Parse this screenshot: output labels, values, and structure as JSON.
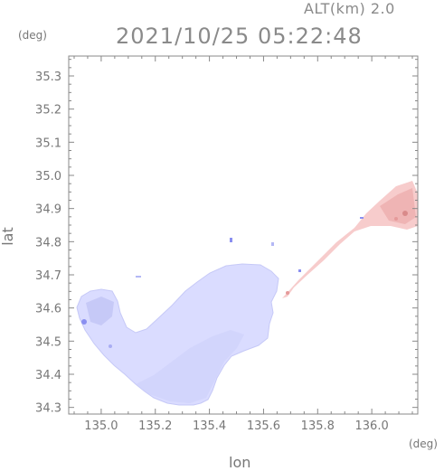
{
  "header": {
    "altitude_label": "ALT(km) 2.0",
    "timestamp": "2021/10/25 05:22:48"
  },
  "axes": {
    "x_unit": "(deg)",
    "y_unit": "(deg)",
    "x_label": "lon",
    "y_label": "lat",
    "x_ticks": [
      "135.0",
      "135.2",
      "135.4",
      "135.6",
      "135.8",
      "136.0"
    ],
    "y_ticks": [
      "35.3",
      "35.2",
      "35.1",
      "35.0",
      "34.9",
      "34.8",
      "34.7",
      "34.6",
      "34.5",
      "34.4",
      "34.3"
    ],
    "x_range": [
      134.88,
      136.17
    ],
    "y_range": [
      34.28,
      35.36
    ]
  },
  "colors": {
    "frame": "#888888",
    "land_blue": "#dadcff",
    "land_blue_dark": "#c6c9f7",
    "land_blue_deep": "#8a8ff0",
    "plume_pink": "#f7cccc",
    "plume_red": "#e59a9a"
  }
}
